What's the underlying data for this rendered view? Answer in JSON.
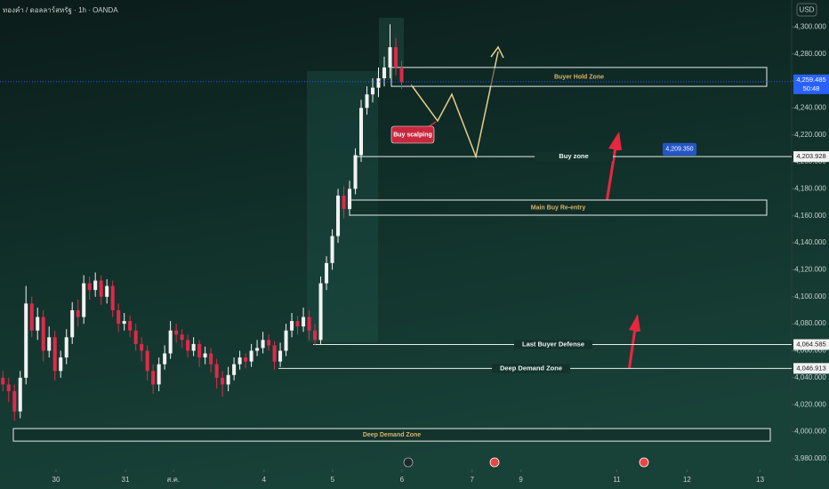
{
  "chart_data": {
    "type": "candlestick",
    "title": "ทองคำ / ดอลลาร์สหรัฐ · 1h · OANDA",
    "currency": "USD",
    "x": [
      1,
      3,
      5,
      7,
      9,
      11,
      13,
      15,
      17,
      19,
      21,
      23,
      25,
      27,
      29,
      31,
      33,
      35,
      37,
      39,
      41,
      43,
      45,
      47,
      49,
      51,
      53,
      55,
      57,
      59,
      61,
      63,
      65,
      67,
      69,
      71,
      73,
      75,
      77,
      79,
      81,
      83,
      85,
      87,
      89,
      91,
      93,
      95,
      97,
      99,
      101,
      103,
      105,
      107,
      109,
      111,
      113,
      115,
      117,
      119,
      121,
      123,
      125,
      127,
      129,
      131,
      133,
      135,
      137,
      139
    ],
    "open": [
      4040,
      4035,
      4030,
      4015,
      4040,
      4095,
      4075,
      4085,
      4060,
      4070,
      4045,
      4055,
      4070,
      4090,
      4085,
      4110,
      4105,
      4112,
      4100,
      4108,
      4090,
      4080,
      4082,
      4075,
      4065,
      4060,
      4045,
      4035,
      4050,
      4058,
      4075,
      4072,
      4068,
      4060,
      4065,
      4055,
      4058,
      4050,
      4040,
      4035,
      4042,
      4050,
      4055,
      4052,
      4060,
      4062,
      4068,
      4064,
      4052,
      4060,
      4075,
      4082,
      4078,
      4085,
      4075,
      4068,
      4110,
      4125,
      4145,
      4175,
      4165,
      4180,
      4205,
      4240,
      4250,
      4255,
      4262,
      4270,
      4285,
      4270
    ],
    "high": [
      4045,
      4040,
      4035,
      4045,
      4108,
      4100,
      4092,
      4090,
      4078,
      4075,
      4060,
      4076,
      4096,
      4098,
      4116,
      4115,
      4118,
      4116,
      4113,
      4112,
      4095,
      4088,
      4086,
      4080,
      4070,
      4064,
      4050,
      4055,
      4064,
      4082,
      4080,
      4076,
      4072,
      4070,
      4068,
      4063,
      4062,
      4054,
      4045,
      4048,
      4055,
      4060,
      4058,
      4065,
      4068,
      4074,
      4072,
      4067,
      4066,
      4080,
      4088,
      4086,
      4092,
      4090,
      4080,
      4115,
      4130,
      4150,
      4180,
      4182,
      4186,
      4210,
      4246,
      4256,
      4262,
      4270,
      4278,
      4302,
      4292,
      4275
    ],
    "low": [
      4030,
      4022,
      4008,
      4010,
      4035,
      4070,
      4068,
      4052,
      4055,
      4038,
      4040,
      4050,
      4065,
      4078,
      4080,
      4098,
      4100,
      4094,
      4095,
      4085,
      4074,
      4075,
      4070,
      4060,
      4052,
      4038,
      4028,
      4030,
      4046,
      4054,
      4066,
      4062,
      4055,
      4056,
      4048,
      4050,
      4044,
      4032,
      4026,
      4030,
      4038,
      4046,
      4047,
      4048,
      4056,
      4058,
      4060,
      4046,
      4048,
      4056,
      4070,
      4072,
      4074,
      4068,
      4064,
      4065,
      4105,
      4120,
      4140,
      4158,
      4160,
      4176,
      4200,
      4235,
      4244,
      4248,
      4256,
      4262,
      4264,
      4254
    ],
    "close": [
      4035,
      4030,
      4015,
      4040,
      4095,
      4075,
      4085,
      4060,
      4070,
      4045,
      4055,
      4070,
      4090,
      4085,
      4110,
      4105,
      4112,
      4100,
      4108,
      4090,
      4080,
      4082,
      4075,
      4065,
      4060,
      4045,
      4035,
      4050,
      4058,
      4075,
      4072,
      4068,
      4060,
      4065,
      4055,
      4058,
      4050,
      4040,
      4035,
      4042,
      4050,
      4055,
      4052,
      4060,
      4062,
      4068,
      4064,
      4052,
      4060,
      4075,
      4082,
      4078,
      4085,
      4075,
      4068,
      4110,
      4125,
      4145,
      4175,
      4165,
      4180,
      4205,
      4240,
      4250,
      4255,
      4262,
      4270,
      4285,
      4270,
      4259
    ],
    "up_color": "#f2f2f2",
    "down_color": "#e0294a",
    "xlim": [
      0,
      274
    ],
    "xticks": [
      {
        "value": 19.4,
        "label": "30"
      },
      {
        "value": 43.4,
        "label": "31"
      },
      {
        "value": 60,
        "label": "ส.ค."
      },
      {
        "value": 91.4,
        "label": "4"
      },
      {
        "value": 115.1,
        "label": "5"
      },
      {
        "value": 139.1,
        "label": "6"
      },
      {
        "value": 163.4,
        "label": "7"
      },
      {
        "value": 180.3,
        "label": "9"
      },
      {
        "value": 213.5,
        "label": "11"
      },
      {
        "value": 237.8,
        "label": "12"
      },
      {
        "value": 263.1,
        "label": "13"
      }
    ],
    "ylim": [
      3972,
      4320
    ],
    "yticks": [
      {
        "value": 4300,
        "label": "4,300.000"
      },
      {
        "value": 4280,
        "label": "4,280.000"
      },
      {
        "value": 4260,
        "label": "4,260.000"
      },
      {
        "value": 4240,
        "label": "4,240.000"
      },
      {
        "value": 4220,
        "label": "4,220.000"
      },
      {
        "value": 4200,
        "label": "4,200.000"
      },
      {
        "value": 4180,
        "label": "4,180.000"
      },
      {
        "value": 4160,
        "label": "4,160.000"
      },
      {
        "value": 4140,
        "label": "4,140.000"
      },
      {
        "value": 4120,
        "label": "4,120.000"
      },
      {
        "value": 4100,
        "label": "4,100.000"
      },
      {
        "value": 4080,
        "label": "4,080.000"
      },
      {
        "value": 4060,
        "label": "4,060.000"
      },
      {
        "value": 4040,
        "label": "4,040.000"
      },
      {
        "value": 4020,
        "label": "4,020.000"
      },
      {
        "value": 4000,
        "label": "4,000.000"
      },
      {
        "value": 3980,
        "label": "3,980.000"
      }
    ],
    "grid": false,
    "current_price": {
      "value": 4259.485,
      "label": "4,259.485",
      "countdown": "50:48",
      "color": "#2962ff"
    },
    "zones": [
      {
        "label": "Buyer Hold Zone",
        "range": [
          4256,
          4270
        ]
      },
      {
        "label": "Main Buy Re-entry",
        "range": [
          4160.5,
          4171.7
        ]
      },
      {
        "label": "Deep Demand Zone",
        "range": [
          3993,
          4002.3
        ]
      }
    ],
    "levels": [
      {
        "label": "Buy zone",
        "value": 4203.928,
        "value_label": "4,203.928"
      },
      {
        "label": "Last Buyer Defense",
        "value": 4064.585,
        "value_label": "4,064.585"
      },
      {
        "label": "Deep Demand Zone",
        "value": 4046.913,
        "value_label": "4,046.913"
      }
    ],
    "annotations": [
      {
        "text": "Buy scalping",
        "color": "#c8283d"
      },
      {
        "text": "4,209.350",
        "value": 4209.35,
        "color": "#2455c9"
      }
    ]
  }
}
